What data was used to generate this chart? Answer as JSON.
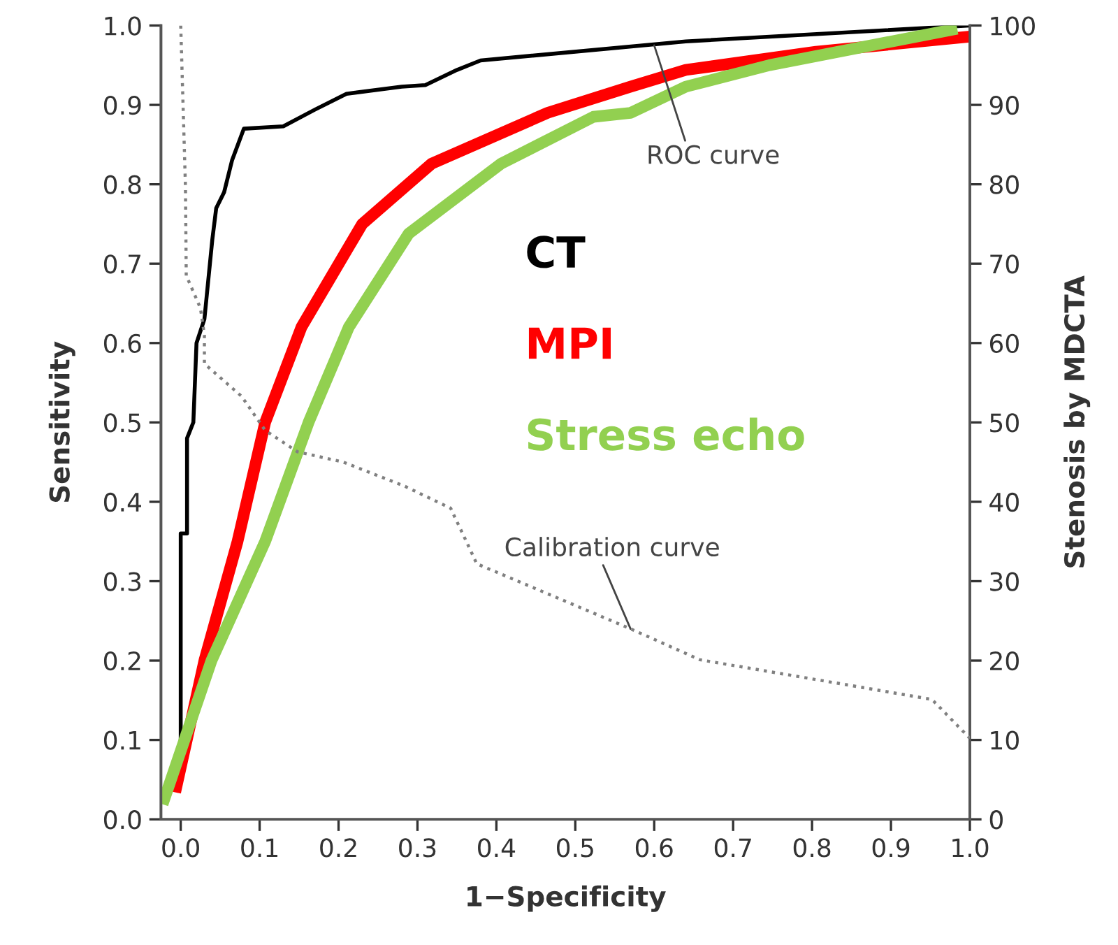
{
  "chart_data": {
    "type": "line",
    "xlabel": "1−Specificity",
    "ylabel": "Sensitivity",
    "y2label": "Stenosis by MDCTA",
    "xlim": [
      -0.025,
      1.0
    ],
    "xticks": [
      {
        "value": 0.0,
        "label": "0.0"
      },
      0.1,
      0.2,
      0.3,
      0.4,
      0.5,
      0.6,
      0.7,
      0.8,
      0.9,
      {
        "value": 1.0,
        "label": "1.0"
      }
    ],
    "ylim": [
      0.0,
      1.0
    ],
    "yticks": [
      {
        "value": 0.0,
        "label": "0.0"
      },
      0.1,
      0.2,
      0.3,
      0.4,
      0.5,
      0.6,
      0.7,
      0.8,
      0.9,
      {
        "value": 1.0,
        "label": "1.0"
      }
    ],
    "y2lim": [
      0,
      100
    ],
    "y2ticks": [
      0,
      10,
      20,
      30,
      40,
      50,
      60,
      70,
      80,
      90,
      100
    ],
    "grid": false,
    "marker": "none",
    "series": [
      {
        "name": "CT",
        "color": "#000000",
        "line_style": "solid",
        "x": [
          0.0,
          0.0,
          0.008,
          0.008,
          0.016,
          0.02,
          0.03,
          0.04,
          0.045,
          0.055,
          0.065,
          0.08,
          0.13,
          0.17,
          0.21,
          0.28,
          0.31,
          0.35,
          0.38,
          0.64,
          1.0
        ],
        "values": [
          0.1,
          0.36,
          0.36,
          0.48,
          0.5,
          0.6,
          0.63,
          0.73,
          0.77,
          0.79,
          0.83,
          0.87,
          0.873,
          0.894,
          0.914,
          0.923,
          0.925,
          0.944,
          0.956,
          0.98,
          1.0
        ]
      },
      {
        "name": "MPI",
        "color": "#ff0000",
        "line_style": "solid",
        "x": [
          -0.007,
          0.03,
          0.072,
          0.107,
          0.153,
          0.23,
          0.318,
          0.465,
          0.57,
          0.64,
          0.805,
          1.0
        ],
        "values": [
          0.034,
          0.2,
          0.35,
          0.5,
          0.62,
          0.75,
          0.826,
          0.89,
          0.923,
          0.944,
          0.967,
          0.986
        ]
      },
      {
        "name": "Stress echo",
        "color": "#92d050",
        "line_style": "solid",
        "x": [
          -0.023,
          0.039,
          0.107,
          0.162,
          0.213,
          0.289,
          0.406,
          0.523,
          0.57,
          0.64,
          0.746,
          0.984
        ],
        "values": [
          0.019,
          0.2,
          0.35,
          0.5,
          0.62,
          0.738,
          0.826,
          0.885,
          0.89,
          0.923,
          0.95,
          0.996
        ]
      },
      {
        "color": "#808080",
        "axis": "y2",
        "line_style": "dotted",
        "x": [
          0.0,
          0.006,
          0.007,
          0.025,
          0.03,
          0.03,
          0.077,
          0.107,
          0.148,
          0.206,
          0.283,
          0.342,
          0.37,
          0.375,
          0.57,
          0.658,
          0.829,
          0.952,
          1.0
        ],
        "values": [
          100,
          79.7,
          68.5,
          64.4,
          61,
          57.4,
          53.3,
          49,
          46.3,
          45,
          42,
          39.2,
          33.3,
          32.2,
          24,
          20.1,
          17.2,
          15.1,
          10.2
        ]
      }
    ],
    "annotations": [
      {
        "text": "ROC curve",
        "x": 0.6,
        "y": 0.975
      },
      {
        "text": "Calibration curve",
        "x": 0.57,
        "y": 0.24
      }
    ]
  }
}
